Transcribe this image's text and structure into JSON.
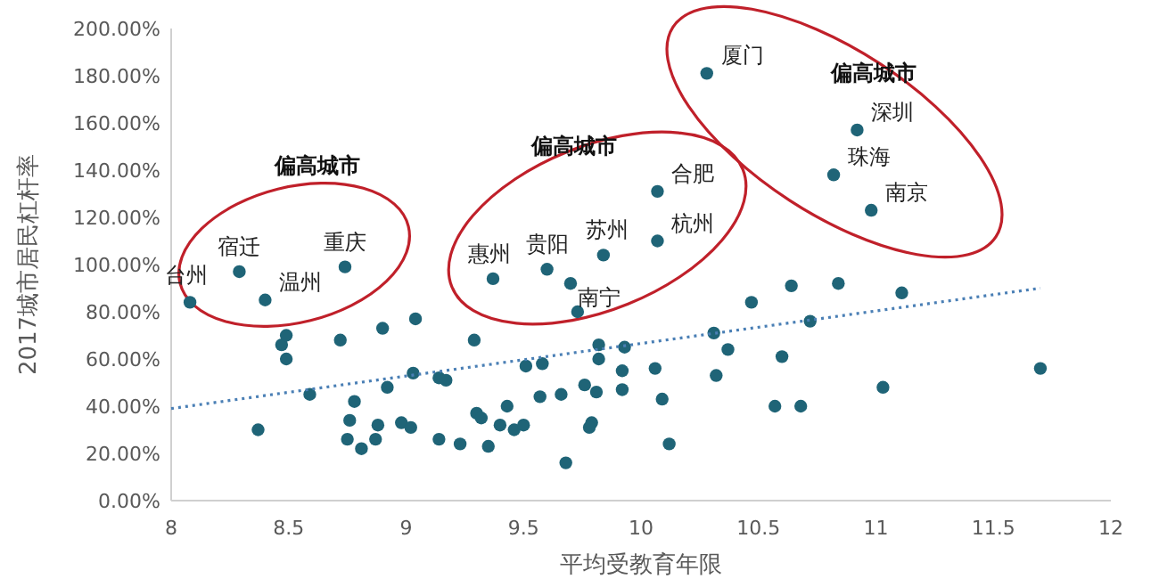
{
  "chart_data": {
    "type": "scatter",
    "xlabel": "平均受教育年限",
    "ylabel": "2017城市居民杠杆率",
    "xlim": [
      8,
      12
    ],
    "xticks": [
      8,
      8.5,
      9,
      9.5,
      10,
      10.5,
      11,
      11.5,
      12
    ],
    "ylim": [
      0,
      200
    ],
    "yticks": [
      {
        "value": 0,
        "label": "0.00%"
      },
      {
        "value": 20,
        "label": "20.00%"
      },
      {
        "value": 40,
        "label": "40.00%"
      },
      {
        "value": 60,
        "label": "60.00%"
      },
      {
        "value": 80,
        "label": "80.00%"
      },
      {
        "value": 100,
        "label": "100.00%"
      },
      {
        "value": 120,
        "label": "120.00%"
      },
      {
        "value": 140,
        "label": "140.00%"
      },
      {
        "value": 160,
        "label": "160.00%"
      },
      {
        "value": 180,
        "label": "180.00%"
      },
      {
        "value": 200,
        "label": "200.00%"
      }
    ],
    "grid": false,
    "marker": "circle",
    "series": [
      {
        "type": "scatter",
        "color": "#1f6477",
        "x": [
          8.08,
          8.29,
          8.4,
          8.74,
          9.37,
          9.6,
          9.7,
          9.84,
          10.07,
          10.07,
          10.28,
          10.92,
          10.82,
          10.98,
          8.47,
          8.49,
          8.49,
          8.72,
          8.9,
          9.04,
          9.29,
          8.59,
          8.78,
          8.92,
          9.03,
          9.14,
          9.17,
          8.37,
          8.76,
          8.75,
          8.81,
          8.88,
          8.87,
          8.98,
          9.02,
          9.14,
          9.23,
          9.3,
          9.32,
          9.35,
          9.43,
          9.4,
          9.46,
          9.5,
          9.51,
          9.58,
          9.57,
          9.66,
          9.68,
          9.73,
          9.76,
          9.82,
          9.82,
          9.81,
          9.79,
          9.78,
          9.93,
          9.92,
          9.92,
          10.06,
          10.09,
          10.12,
          10.31,
          10.32,
          10.37,
          10.47,
          10.6,
          10.57,
          10.68,
          10.64,
          10.72,
          10.84,
          11.11,
          11.03,
          11.7
        ],
        "values": [
          84,
          97,
          85,
          99,
          94,
          98,
          92,
          104,
          131,
          110,
          181,
          157,
          138,
          123,
          66,
          70,
          60,
          68,
          73,
          77,
          68,
          45,
          42,
          48,
          54,
          52,
          51,
          30,
          34,
          26,
          22,
          32,
          26,
          33,
          31,
          26,
          24,
          37,
          35,
          23,
          40,
          32,
          30,
          32,
          57,
          58,
          44,
          45,
          16,
          80,
          49,
          66,
          60,
          46,
          33,
          31,
          65,
          55,
          47,
          56,
          43,
          24,
          71,
          53,
          64,
          84,
          61,
          40,
          40,
          91,
          76,
          92,
          88,
          48,
          56
        ]
      },
      {
        "type": "line",
        "marker": "none",
        "line_style": "dotted",
        "color": "#4a7fb5",
        "x": [
          8,
          11.7
        ],
        "values": [
          39,
          90
        ]
      }
    ],
    "annotations": [
      {
        "text": "台州",
        "x": 8.08,
        "y": 84
      },
      {
        "text": "宿迁",
        "x": 8.29,
        "y": 97
      },
      {
        "text": "温州",
        "x": 8.4,
        "y": 85
      },
      {
        "text": "重庆",
        "x": 8.74,
        "y": 99
      },
      {
        "text": "惠州",
        "x": 9.37,
        "y": 94
      },
      {
        "text": "贵阳",
        "x": 9.6,
        "y": 98
      },
      {
        "text": "南宁",
        "x": 9.7,
        "y": 92
      },
      {
        "text": "苏州",
        "x": 9.84,
        "y": 104
      },
      {
        "text": "合肥",
        "x": 10.07,
        "y": 131
      },
      {
        "text": "杭州",
        "x": 10.07,
        "y": 110
      },
      {
        "text": "厦门",
        "x": 10.28,
        "y": 181
      },
      {
        "text": "深圳",
        "x": 10.92,
        "y": 157
      },
      {
        "text": "珠海",
        "x": 10.82,
        "y": 138
      },
      {
        "text": "南京",
        "x": 10.98,
        "y": 123
      },
      "**偏高城市**",
      "**偏高城市**",
      "**偏高城市**"
    ]
  }
}
